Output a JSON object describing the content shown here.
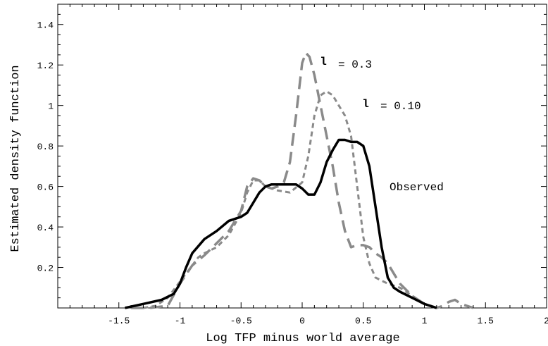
{
  "chart_data": {
    "type": "line",
    "xlabel": "Log TFP minus world average",
    "ylabel": "Estimated density function",
    "xlim": [
      -2,
      2
    ],
    "ylim": [
      0,
      1.5
    ],
    "x_ticks": [
      -1.5,
      -1,
      -0.5,
      0,
      0.5,
      1,
      1.5,
      2
    ],
    "x_tick_labels": [
      "-1.5",
      "-1",
      "-0.5",
      "0",
      "0.5",
      "1",
      "1.5",
      "2"
    ],
    "y_ticks": [
      0.2,
      0.4,
      0.6,
      0.8,
      1,
      1.2,
      1.4
    ],
    "y_tick_labels": [
      "0.2",
      "0.4",
      "0.6",
      "0.8",
      "1",
      "1.2",
      "1.4"
    ],
    "grid": false,
    "legend": "none",
    "annotations": [
      {
        "symbol": "l",
        "text": "= 0.3",
        "series": 0
      },
      {
        "symbol": "l",
        "text": "= 0.10",
        "series": 1
      },
      {
        "symbol": "",
        "text": "Observed",
        "series": 2
      }
    ],
    "series": [
      {
        "style": "long-dash",
        "color": "#8a8a8a",
        "x": [
          -1.4,
          -1.25,
          -1.1,
          -1.0,
          -0.9,
          -0.8,
          -0.7,
          -0.6,
          -0.5,
          -0.45,
          -0.4,
          -0.35,
          -0.3,
          -0.25,
          -0.2,
          -0.15,
          -0.1,
          -0.05,
          0.0,
          0.03,
          0.06,
          0.1,
          0.15,
          0.2,
          0.25,
          0.3,
          0.35,
          0.4,
          0.45,
          0.5,
          0.55,
          0.6,
          0.65,
          0.7,
          0.75,
          0.8,
          0.9,
          1.0,
          1.05,
          1.1,
          1.15,
          1.2,
          1.25,
          1.3,
          1.4
        ],
        "y": [
          0.0,
          0.0,
          0.01,
          0.12,
          0.21,
          0.26,
          0.32,
          0.38,
          0.48,
          0.6,
          0.64,
          0.63,
          0.6,
          0.59,
          0.6,
          0.62,
          0.72,
          0.95,
          1.21,
          1.26,
          1.24,
          1.15,
          1.0,
          0.85,
          0.7,
          0.52,
          0.38,
          0.3,
          0.31,
          0.31,
          0.3,
          0.27,
          0.25,
          0.22,
          0.17,
          0.12,
          0.06,
          0.02,
          0.01,
          0.0,
          0.01,
          0.03,
          0.04,
          0.02,
          0.0
        ]
      },
      {
        "style": "short-dash",
        "color": "#8a8a8a",
        "x": [
          -1.3,
          -1.2,
          -1.1,
          -1.0,
          -0.9,
          -0.85,
          -0.8,
          -0.7,
          -0.6,
          -0.5,
          -0.45,
          -0.4,
          -0.35,
          -0.3,
          -0.2,
          -0.1,
          0.0,
          0.05,
          0.1,
          0.15,
          0.2,
          0.25,
          0.3,
          0.35,
          0.4,
          0.45,
          0.5,
          0.55,
          0.6,
          0.7,
          0.8,
          0.9,
          1.0,
          1.1
        ],
        "y": [
          0.0,
          0.01,
          0.05,
          0.13,
          0.21,
          0.25,
          0.27,
          0.3,
          0.36,
          0.47,
          0.57,
          0.63,
          0.63,
          0.6,
          0.58,
          0.57,
          0.62,
          0.75,
          0.95,
          1.05,
          1.07,
          1.05,
          1.0,
          0.95,
          0.85,
          0.6,
          0.35,
          0.22,
          0.15,
          0.12,
          0.1,
          0.06,
          0.02,
          0.0
        ]
      },
      {
        "style": "solid",
        "color": "#000000",
        "x": [
          -1.45,
          -1.3,
          -1.15,
          -1.05,
          -1.0,
          -0.95,
          -0.9,
          -0.8,
          -0.7,
          -0.6,
          -0.5,
          -0.45,
          -0.4,
          -0.35,
          -0.3,
          -0.25,
          -0.2,
          -0.1,
          -0.05,
          0.0,
          0.05,
          0.1,
          0.15,
          0.2,
          0.25,
          0.3,
          0.35,
          0.4,
          0.45,
          0.5,
          0.55,
          0.6,
          0.65,
          0.7,
          0.75,
          0.8,
          0.9,
          1.0,
          1.1
        ],
        "y": [
          0.0,
          0.02,
          0.04,
          0.07,
          0.12,
          0.2,
          0.27,
          0.34,
          0.38,
          0.43,
          0.45,
          0.47,
          0.52,
          0.57,
          0.6,
          0.61,
          0.61,
          0.61,
          0.61,
          0.59,
          0.56,
          0.56,
          0.62,
          0.72,
          0.78,
          0.83,
          0.83,
          0.82,
          0.82,
          0.8,
          0.7,
          0.5,
          0.3,
          0.15,
          0.1,
          0.08,
          0.05,
          0.02,
          0.0
        ]
      }
    ]
  }
}
